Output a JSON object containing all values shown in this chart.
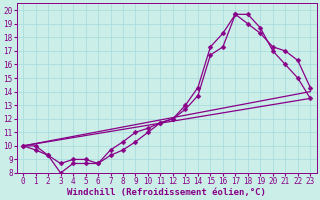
{
  "xlabel": "Windchill (Refroidissement éolien,°C)",
  "xlim": [
    -0.5,
    23.5
  ],
  "ylim": [
    8,
    20.5
  ],
  "xticks": [
    0,
    1,
    2,
    3,
    4,
    5,
    6,
    7,
    8,
    9,
    10,
    11,
    12,
    13,
    14,
    15,
    16,
    17,
    18,
    19,
    20,
    21,
    22,
    23
  ],
  "yticks": [
    8,
    9,
    10,
    11,
    12,
    13,
    14,
    15,
    16,
    17,
    18,
    19,
    20
  ],
  "bg_color": "#cceee8",
  "line_color": "#880088",
  "curve1_x": [
    0,
    1,
    2,
    3,
    4,
    5,
    6,
    7,
    8,
    9,
    10,
    11,
    12,
    13,
    14,
    15,
    16,
    17,
    18,
    19,
    20,
    21,
    22,
    23
  ],
  "curve1_y": [
    10,
    10,
    9.3,
    8,
    8.7,
    8.7,
    8.7,
    9.3,
    9.7,
    10.3,
    11,
    11.7,
    12,
    13,
    14.3,
    17.3,
    18.3,
    19.7,
    19.7,
    18.7,
    17,
    16,
    15,
    13.5
  ],
  "curve2_x": [
    0,
    1,
    2,
    3,
    4,
    5,
    6,
    7,
    8,
    9,
    10,
    11,
    12,
    13,
    14,
    15,
    16,
    17,
    18,
    19,
    20,
    21,
    22,
    23
  ],
  "curve2_y": [
    10,
    9.7,
    9.3,
    8.7,
    9,
    9,
    8.7,
    9.7,
    10.3,
    11,
    11.3,
    11.7,
    12,
    12.7,
    13.7,
    16.7,
    17.3,
    19.7,
    19.0,
    18.3,
    17.3,
    17,
    16.3,
    14.3
  ],
  "line3_x": [
    0,
    23
  ],
  "line3_y": [
    10,
    13.5
  ],
  "line4_x": [
    0,
    23
  ],
  "line4_y": [
    10,
    14.0
  ],
  "grid_color": "#aadddd",
  "tick_fontsize": 5.5,
  "xlabel_fontsize": 6.5,
  "marker_size": 2.5,
  "line_width": 0.9
}
